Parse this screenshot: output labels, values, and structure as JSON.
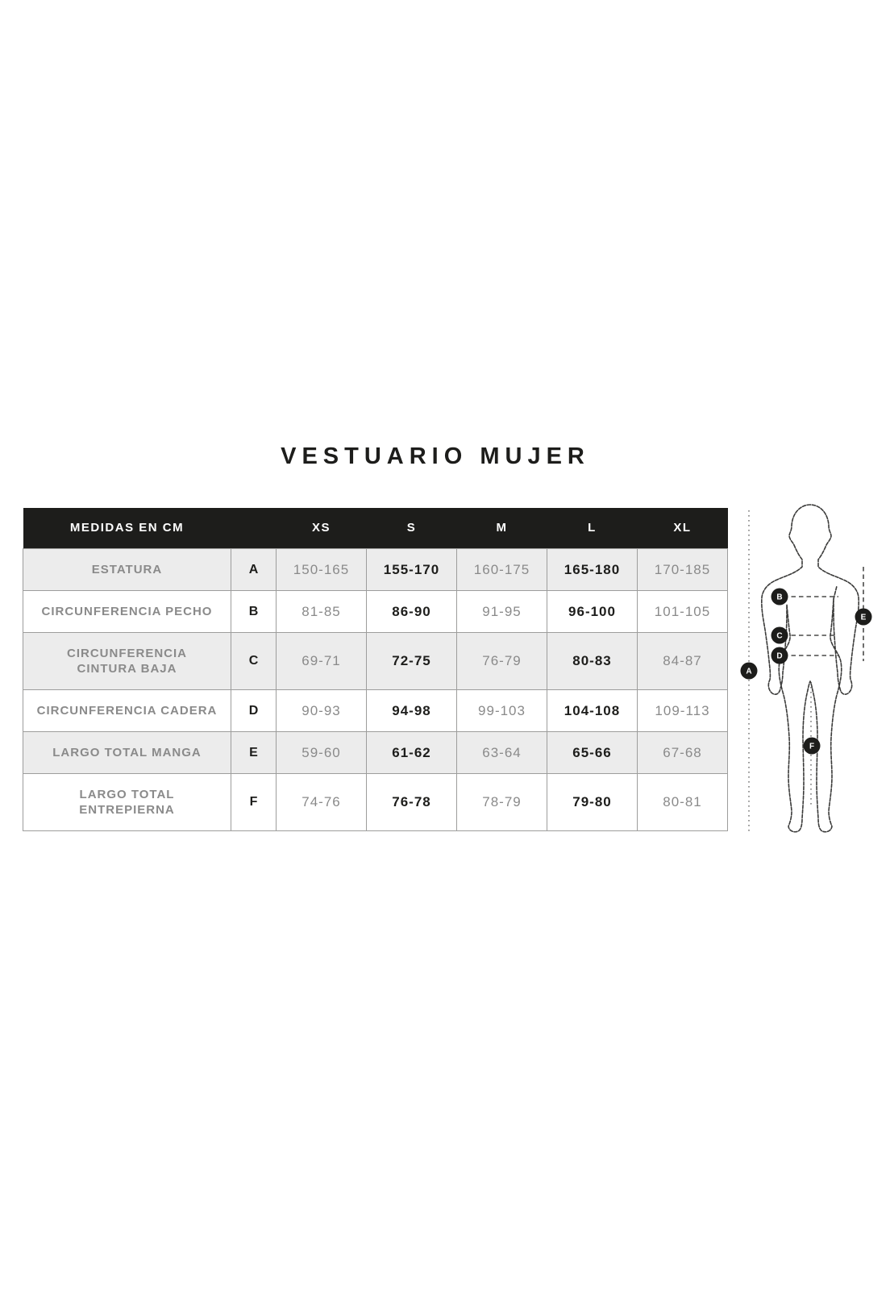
{
  "title": "VESTUARIO MUJER",
  "table": {
    "header": {
      "label": "MEDIDAS EN CM",
      "sizes": [
        "XS",
        "S",
        "M",
        "L",
        "XL"
      ]
    },
    "rows": [
      {
        "label": "ESTATURA",
        "letter": "A",
        "values": [
          "150-165",
          "155-170",
          "160-175",
          "165-180",
          "170-185"
        ]
      },
      {
        "label": "CIRCUNFERENCIA PECHO",
        "letter": "B",
        "values": [
          "81-85",
          "86-90",
          "91-95",
          "96-100",
          "101-105"
        ]
      },
      {
        "label": "CIRCUNFERENCIA\nCINTURA BAJA",
        "letter": "C",
        "values": [
          "69-71",
          "72-75",
          "76-79",
          "80-83",
          "84-87"
        ]
      },
      {
        "label": "CIRCUNFERENCIA CADERA",
        "letter": "D",
        "values": [
          "90-93",
          "94-98",
          "99-103",
          "104-108",
          "109-113"
        ]
      },
      {
        "label": "LARGO TOTAL MANGA",
        "letter": "E",
        "values": [
          "59-60",
          "61-62",
          "63-64",
          "65-66",
          "67-68"
        ]
      },
      {
        "label": "LARGO TOTAL\nENTREPIERNA",
        "letter": "F",
        "values": [
          "74-76",
          "76-78",
          "78-79",
          "79-80",
          "80-81"
        ]
      }
    ],
    "bold_value_indexes": [
      1,
      3
    ]
  },
  "diagram": {
    "badges": [
      "A",
      "B",
      "C",
      "D",
      "E",
      "F"
    ]
  },
  "colors": {
    "header_bg": "#1d1d1b",
    "row_alt_bg": "#ececec",
    "border": "#9d9d9c",
    "muted_text": "#8a8a8a",
    "dark_text": "#1d1d1b"
  }
}
